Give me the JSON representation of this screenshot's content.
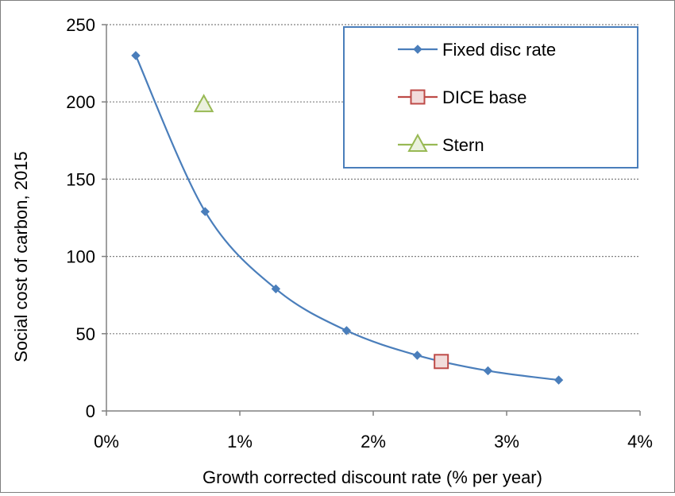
{
  "chart_data": {
    "type": "line",
    "title": "",
    "xlabel": "Growth corrected discount rate (% per year)",
    "ylabel": "Social cost of carbon, 2015",
    "xlim": [
      0,
      4
    ],
    "ylim": [
      0,
      250
    ],
    "x_ticks": [
      0,
      1,
      2,
      3,
      4
    ],
    "x_tick_labels": [
      "0%",
      "1%",
      "2%",
      "3%",
      "4%"
    ],
    "y_ticks": [
      0,
      50,
      100,
      150,
      200,
      250
    ],
    "y_tick_labels": [
      "0",
      "50",
      "100",
      "150",
      "200",
      "250"
    ],
    "grid": "horizontal dotted",
    "legend_position": "top-right",
    "series": [
      {
        "name": "Fixed disc rate",
        "marker": "diamond",
        "color": "#4a7ebb",
        "line": "smooth",
        "x": [
          0.22,
          0.74,
          1.27,
          1.8,
          2.33,
          2.86,
          3.39
        ],
        "y": [
          230,
          129,
          79,
          52,
          36,
          26,
          20
        ]
      },
      {
        "name": "DICE base",
        "marker": "square",
        "color": "#be4b48",
        "fill": "#f2dcdb",
        "x": [
          2.51
        ],
        "y": [
          32
        ]
      },
      {
        "name": "Stern",
        "marker": "triangle",
        "color": "#98b954",
        "fill": "#ebf1de",
        "x": [
          0.73
        ],
        "y": [
          198
        ]
      }
    ]
  }
}
